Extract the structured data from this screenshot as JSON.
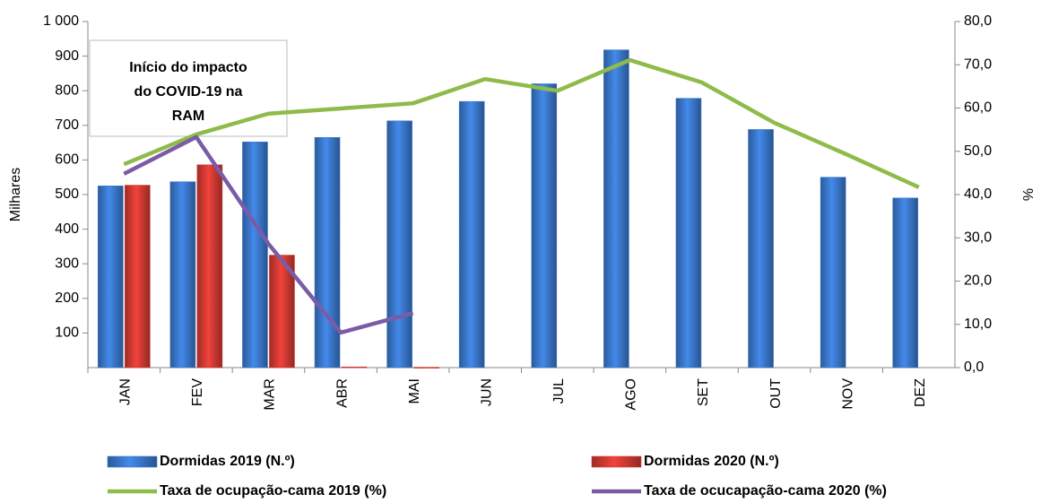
{
  "chart_data": {
    "type": "bar",
    "annotation": [
      "Início do impacto",
      "do COVID-19 na",
      "RAM"
    ],
    "ylabel": "Milhares",
    "y2label": "%",
    "categories": [
      "JAN",
      "FEV",
      "MAR",
      "ABR",
      "MAI",
      "JUN",
      "JUL",
      "AGO",
      "SET",
      "OUT",
      "NOV",
      "DEZ"
    ],
    "series": [
      {
        "name": "Dormidas 2019 (N.º)",
        "type": "bar",
        "color": "#3a78cc",
        "values": [
          525,
          537,
          652,
          665,
          713,
          769,
          820,
          918,
          778,
          688,
          550,
          490
        ]
      },
      {
        "name": "Dormidas 2020 (N.º)",
        "type": "bar",
        "color": "#d23a33",
        "values": [
          527,
          586,
          325,
          2,
          1,
          null,
          null,
          null,
          null,
          null,
          null,
          null
        ]
      },
      {
        "name": "Taxa de ocupação-cama 2019 (%)",
        "type": "line",
        "axis": "y2",
        "color": "#8ebb4a",
        "values": [
          47.0,
          53.9,
          58.7,
          59.9,
          61.1,
          66.7,
          64.0,
          71.1,
          65.9,
          56.6,
          49.3,
          41.7
        ]
      },
      {
        "name": "Taxa de ocucapação-cama 2020 (%)",
        "type": "line",
        "axis": "y2",
        "color": "#7a5ca6",
        "values": [
          44.8,
          53.3,
          28.6,
          8.1,
          12.6,
          null,
          null,
          null,
          null,
          null,
          null,
          null
        ]
      }
    ],
    "ylim": [
      0,
      1000
    ],
    "yticks": [
      100,
      200,
      300,
      400,
      500,
      600,
      700,
      800,
      900,
      {
        "value": 1000,
        "label": "1 000"
      }
    ],
    "y2lim": [
      0,
      80
    ],
    "y2ticks": [
      {
        "value": 0,
        "label": "0,0"
      },
      {
        "value": 10,
        "label": "10,0"
      },
      {
        "value": 20,
        "label": "20,0"
      },
      {
        "value": 30,
        "label": "30,0"
      },
      {
        "value": 40,
        "label": "40,0"
      },
      {
        "value": 50,
        "label": "50,0"
      },
      {
        "value": 60,
        "label": "60,0"
      },
      {
        "value": 70,
        "label": "70,0"
      },
      {
        "value": 80,
        "label": "80,0"
      }
    ],
    "grid": false
  }
}
